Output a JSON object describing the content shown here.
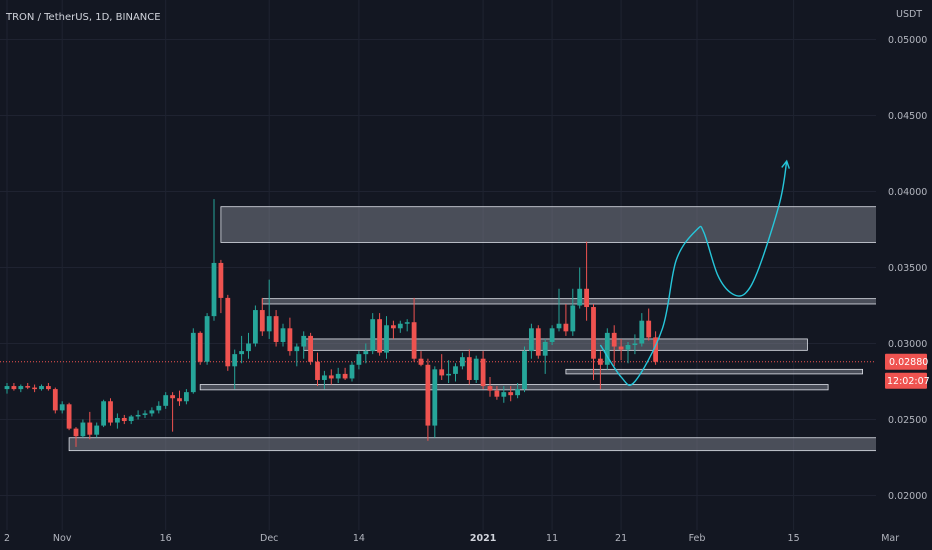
{
  "chart_data": {
    "type": "candlestick",
    "title": "TRON / TetherUS, 1D, BINANCE",
    "currency": "USDT",
    "y_ticks": [
      "0.05000",
      "0.04500",
      "0.04000",
      "0.03500",
      "0.03000",
      "0.02500",
      "0.02000"
    ],
    "ylim": [
      0.0186,
      0.0519
    ],
    "x_ticks": [
      {
        "label": "2",
        "day": 0,
        "bold": false
      },
      {
        "label": "Nov",
        "day": 8,
        "bold": false
      },
      {
        "label": "16",
        "day": 23,
        "bold": false
      },
      {
        "label": "Dec",
        "day": 38,
        "bold": false
      },
      {
        "label": "14",
        "day": 51,
        "bold": false
      },
      {
        "label": "2021",
        "day": 69,
        "bold": true
      },
      {
        "label": "11",
        "day": 79,
        "bold": false
      },
      {
        "label": "21",
        "day": 89,
        "bold": false
      },
      {
        "label": "Feb",
        "day": 100,
        "bold": false
      },
      {
        "label": "15",
        "day": 114,
        "bold": false
      },
      {
        "label": "Mar",
        "day": 128,
        "bold": false
      }
    ],
    "current_price": "0.02880",
    "countdown": "12:02:07",
    "colors": {
      "up": "#26a69a",
      "down": "#ef5350",
      "projection": "#26c6da",
      "price_line": "#ef5350"
    },
    "zones": [
      {
        "y_top": 0.039,
        "y_bottom": 0.03665,
        "x_start": 31,
        "x_end": 128
      },
      {
        "y_top": 0.03295,
        "y_bottom": 0.0326,
        "x_start": 37,
        "x_end": 126
      },
      {
        "y_top": 0.0303,
        "y_bottom": 0.02955,
        "x_start": 43,
        "x_end": 116
      },
      {
        "y_top": 0.0283,
        "y_bottom": 0.028,
        "x_start": 81,
        "x_end": 124
      },
      {
        "y_top": 0.0273,
        "y_bottom": 0.02695,
        "x_start": 28,
        "x_end": 119
      },
      {
        "y_top": 0.0238,
        "y_bottom": 0.02295,
        "x_start": 9,
        "x_end": 128
      }
    ],
    "projection": [
      [
        86,
        0.0299
      ],
      [
        89,
        0.0278
      ],
      [
        91,
        0.0275
      ],
      [
        95,
        0.031
      ],
      [
        97,
        0.0355
      ],
      [
        100,
        0.0375
      ],
      [
        101,
        0.0373
      ],
      [
        103,
        0.0345
      ],
      [
        105,
        0.0333
      ],
      [
        107,
        0.0333
      ],
      [
        109,
        0.035
      ],
      [
        112,
        0.0393
      ],
      [
        113,
        0.042
      ]
    ],
    "candles": [
      [
        0.027,
        0.0274,
        0.0267,
        0.0272
      ],
      [
        0.0272,
        0.0274,
        0.0269,
        0.027
      ],
      [
        0.027,
        0.0273,
        0.0268,
        0.0272
      ],
      [
        0.0272,
        0.0274,
        0.027,
        0.0271
      ],
      [
        0.0271,
        0.0273,
        0.0268,
        0.027
      ],
      [
        0.027,
        0.0273,
        0.0269,
        0.0272
      ],
      [
        0.0272,
        0.0274,
        0.0269,
        0.027
      ],
      [
        0.027,
        0.0271,
        0.0254,
        0.0256
      ],
      [
        0.0256,
        0.0262,
        0.0254,
        0.026
      ],
      [
        0.026,
        0.0261,
        0.0243,
        0.0244
      ],
      [
        0.0244,
        0.0245,
        0.0232,
        0.0239
      ],
      [
        0.0239,
        0.025,
        0.0238,
        0.0248
      ],
      [
        0.0248,
        0.0255,
        0.0237,
        0.024
      ],
      [
        0.024,
        0.0248,
        0.0238,
        0.0246
      ],
      [
        0.0246,
        0.0263,
        0.0245,
        0.0262
      ],
      [
        0.0262,
        0.0264,
        0.0246,
        0.0248
      ],
      [
        0.0248,
        0.0254,
        0.0244,
        0.0251
      ],
      [
        0.0251,
        0.0253,
        0.0247,
        0.0249
      ],
      [
        0.0249,
        0.0253,
        0.0247,
        0.0252
      ],
      [
        0.0252,
        0.0256,
        0.025,
        0.0253
      ],
      [
        0.0253,
        0.0256,
        0.0251,
        0.0254
      ],
      [
        0.0254,
        0.0258,
        0.0252,
        0.0256
      ],
      [
        0.0256,
        0.0262,
        0.0254,
        0.0259
      ],
      [
        0.0259,
        0.0268,
        0.0257,
        0.0266
      ],
      [
        0.0266,
        0.0268,
        0.0242,
        0.0264
      ],
      [
        0.0264,
        0.0269,
        0.0259,
        0.0262
      ],
      [
        0.0262,
        0.027,
        0.026,
        0.0268
      ],
      [
        0.0268,
        0.031,
        0.0267,
        0.0307
      ],
      [
        0.0307,
        0.0308,
        0.0286,
        0.0288
      ],
      [
        0.0288,
        0.032,
        0.0286,
        0.0318
      ],
      [
        0.0318,
        0.0395,
        0.0315,
        0.0353
      ],
      [
        0.0353,
        0.0355,
        0.032,
        0.033
      ],
      [
        0.033,
        0.0332,
        0.0282,
        0.0285
      ],
      [
        0.0285,
        0.0296,
        0.027,
        0.0293
      ],
      [
        0.0293,
        0.0305,
        0.0287,
        0.0295
      ],
      [
        0.0295,
        0.0307,
        0.029,
        0.03
      ],
      [
        0.03,
        0.0325,
        0.0298,
        0.0322
      ],
      [
        0.0322,
        0.033,
        0.0305,
        0.0308
      ],
      [
        0.0308,
        0.0342,
        0.0303,
        0.0318
      ],
      [
        0.0318,
        0.0322,
        0.0298,
        0.0301
      ],
      [
        0.0301,
        0.0313,
        0.0298,
        0.031
      ],
      [
        0.031,
        0.0317,
        0.0292,
        0.0295
      ],
      [
        0.0295,
        0.03,
        0.0285,
        0.0298
      ],
      [
        0.0298,
        0.0308,
        0.029,
        0.0305
      ],
      [
        0.0305,
        0.0307,
        0.0286,
        0.0288
      ],
      [
        0.0288,
        0.0294,
        0.0272,
        0.0276
      ],
      [
        0.0276,
        0.0282,
        0.027,
        0.0279
      ],
      [
        0.0279,
        0.0283,
        0.0273,
        0.0277
      ],
      [
        0.0277,
        0.0284,
        0.0274,
        0.028
      ],
      [
        0.028,
        0.0284,
        0.0276,
        0.0277
      ],
      [
        0.0277,
        0.0288,
        0.0275,
        0.0286
      ],
      [
        0.0286,
        0.0295,
        0.0283,
        0.0293
      ],
      [
        0.0293,
        0.03,
        0.0287,
        0.0295
      ],
      [
        0.0295,
        0.032,
        0.0293,
        0.0316
      ],
      [
        0.0316,
        0.032,
        0.0292,
        0.0294
      ],
      [
        0.0294,
        0.0318,
        0.029,
        0.0312
      ],
      [
        0.0312,
        0.0315,
        0.0303,
        0.031
      ],
      [
        0.031,
        0.0315,
        0.0307,
        0.0313
      ],
      [
        0.0313,
        0.0316,
        0.0308,
        0.0314
      ],
      [
        0.0314,
        0.033,
        0.0288,
        0.029
      ],
      [
        0.029,
        0.0295,
        0.0285,
        0.0286
      ],
      [
        0.0286,
        0.029,
        0.0236,
        0.0246
      ],
      [
        0.0246,
        0.0285,
        0.0238,
        0.0283
      ],
      [
        0.0283,
        0.0293,
        0.0276,
        0.0279
      ],
      [
        0.0279,
        0.0289,
        0.0274,
        0.028
      ],
      [
        0.028,
        0.0287,
        0.0275,
        0.0285
      ],
      [
        0.0285,
        0.0294,
        0.0283,
        0.0291
      ],
      [
        0.0291,
        0.0296,
        0.0273,
        0.0276
      ],
      [
        0.0276,
        0.0292,
        0.0274,
        0.029
      ],
      [
        0.029,
        0.0295,
        0.027,
        0.0272
      ],
      [
        0.0272,
        0.0278,
        0.0265,
        0.0269
      ],
      [
        0.0269,
        0.0272,
        0.0263,
        0.0265
      ],
      [
        0.0265,
        0.0272,
        0.0261,
        0.0268
      ],
      [
        0.0268,
        0.0272,
        0.0262,
        0.0266
      ],
      [
        0.0266,
        0.0274,
        0.0264,
        0.027
      ],
      [
        0.027,
        0.0298,
        0.0268,
        0.0295
      ],
      [
        0.0295,
        0.0313,
        0.029,
        0.031
      ],
      [
        0.031,
        0.0312,
        0.029,
        0.0292
      ],
      [
        0.0292,
        0.0303,
        0.028,
        0.0301
      ],
      [
        0.0301,
        0.0312,
        0.0299,
        0.031
      ],
      [
        0.031,
        0.0336,
        0.0308,
        0.0313
      ],
      [
        0.0313,
        0.0326,
        0.0305,
        0.0308
      ],
      [
        0.0308,
        0.0336,
        0.0305,
        0.0325
      ],
      [
        0.0325,
        0.035,
        0.0323,
        0.0336
      ],
      [
        0.0336,
        0.0367,
        0.0315,
        0.0324
      ],
      [
        0.0324,
        0.0326,
        0.0276,
        0.029
      ],
      [
        0.029,
        0.0295,
        0.027,
        0.0286
      ],
      [
        0.0286,
        0.031,
        0.0283,
        0.0307
      ],
      [
        0.0307,
        0.0312,
        0.0285,
        0.0298
      ],
      [
        0.0298,
        0.0303,
        0.0289,
        0.0296
      ],
      [
        0.0296,
        0.0301,
        0.0287,
        0.0299
      ],
      [
        0.0299,
        0.0306,
        0.0293,
        0.03
      ],
      [
        0.03,
        0.032,
        0.0298,
        0.0315
      ],
      [
        0.0315,
        0.0323,
        0.0302,
        0.0304
      ],
      [
        0.0304,
        0.0308,
        0.0286,
        0.0288
      ]
    ]
  }
}
